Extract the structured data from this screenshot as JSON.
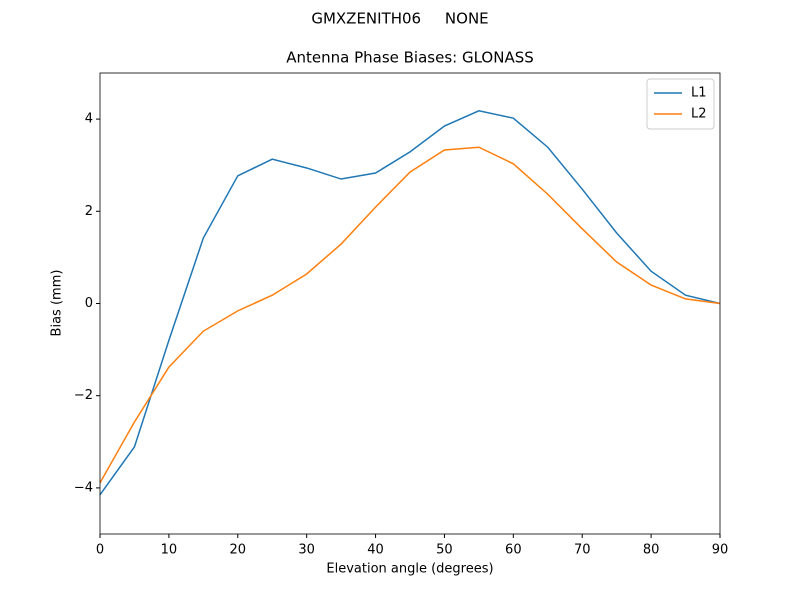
{
  "chart_data": {
    "type": "line",
    "suptitle": "GMXZENITH06     NONE",
    "title": "Antenna Phase Biases: GLONASS",
    "xlabel": "Elevation angle (degrees)",
    "ylabel": "Bias (mm)",
    "x": [
      0,
      5,
      10,
      15,
      20,
      25,
      30,
      35,
      40,
      45,
      50,
      55,
      60,
      65,
      70,
      75,
      80,
      85,
      90
    ],
    "series": [
      {
        "name": "L1",
        "color": "#1f77b4",
        "values": [
          -4.15,
          -3.11,
          -0.8,
          1.42,
          2.77,
          3.13,
          2.94,
          2.7,
          2.83,
          3.29,
          3.85,
          4.18,
          4.02,
          3.39,
          2.48,
          1.53,
          0.7,
          0.18,
          0.0
        ]
      },
      {
        "name": "L2",
        "color": "#ff7f0e",
        "values": [
          -3.89,
          -2.57,
          -1.38,
          -0.6,
          -0.16,
          0.18,
          0.64,
          1.29,
          2.09,
          2.85,
          3.33,
          3.39,
          3.03,
          2.37,
          1.62,
          0.9,
          0.4,
          0.1,
          0.0
        ]
      }
    ],
    "xlim": [
      0,
      90
    ],
    "xticks": [
      0,
      10,
      20,
      30,
      40,
      50,
      60,
      70,
      80,
      90
    ],
    "ylim": [
      -5,
      5
    ],
    "yticks": [
      {
        "value": -4,
        "label": "−4"
      },
      {
        "value": -2,
        "label": "−2"
      },
      0,
      2,
      4
    ],
    "legend": "upper right",
    "grid": false
  }
}
